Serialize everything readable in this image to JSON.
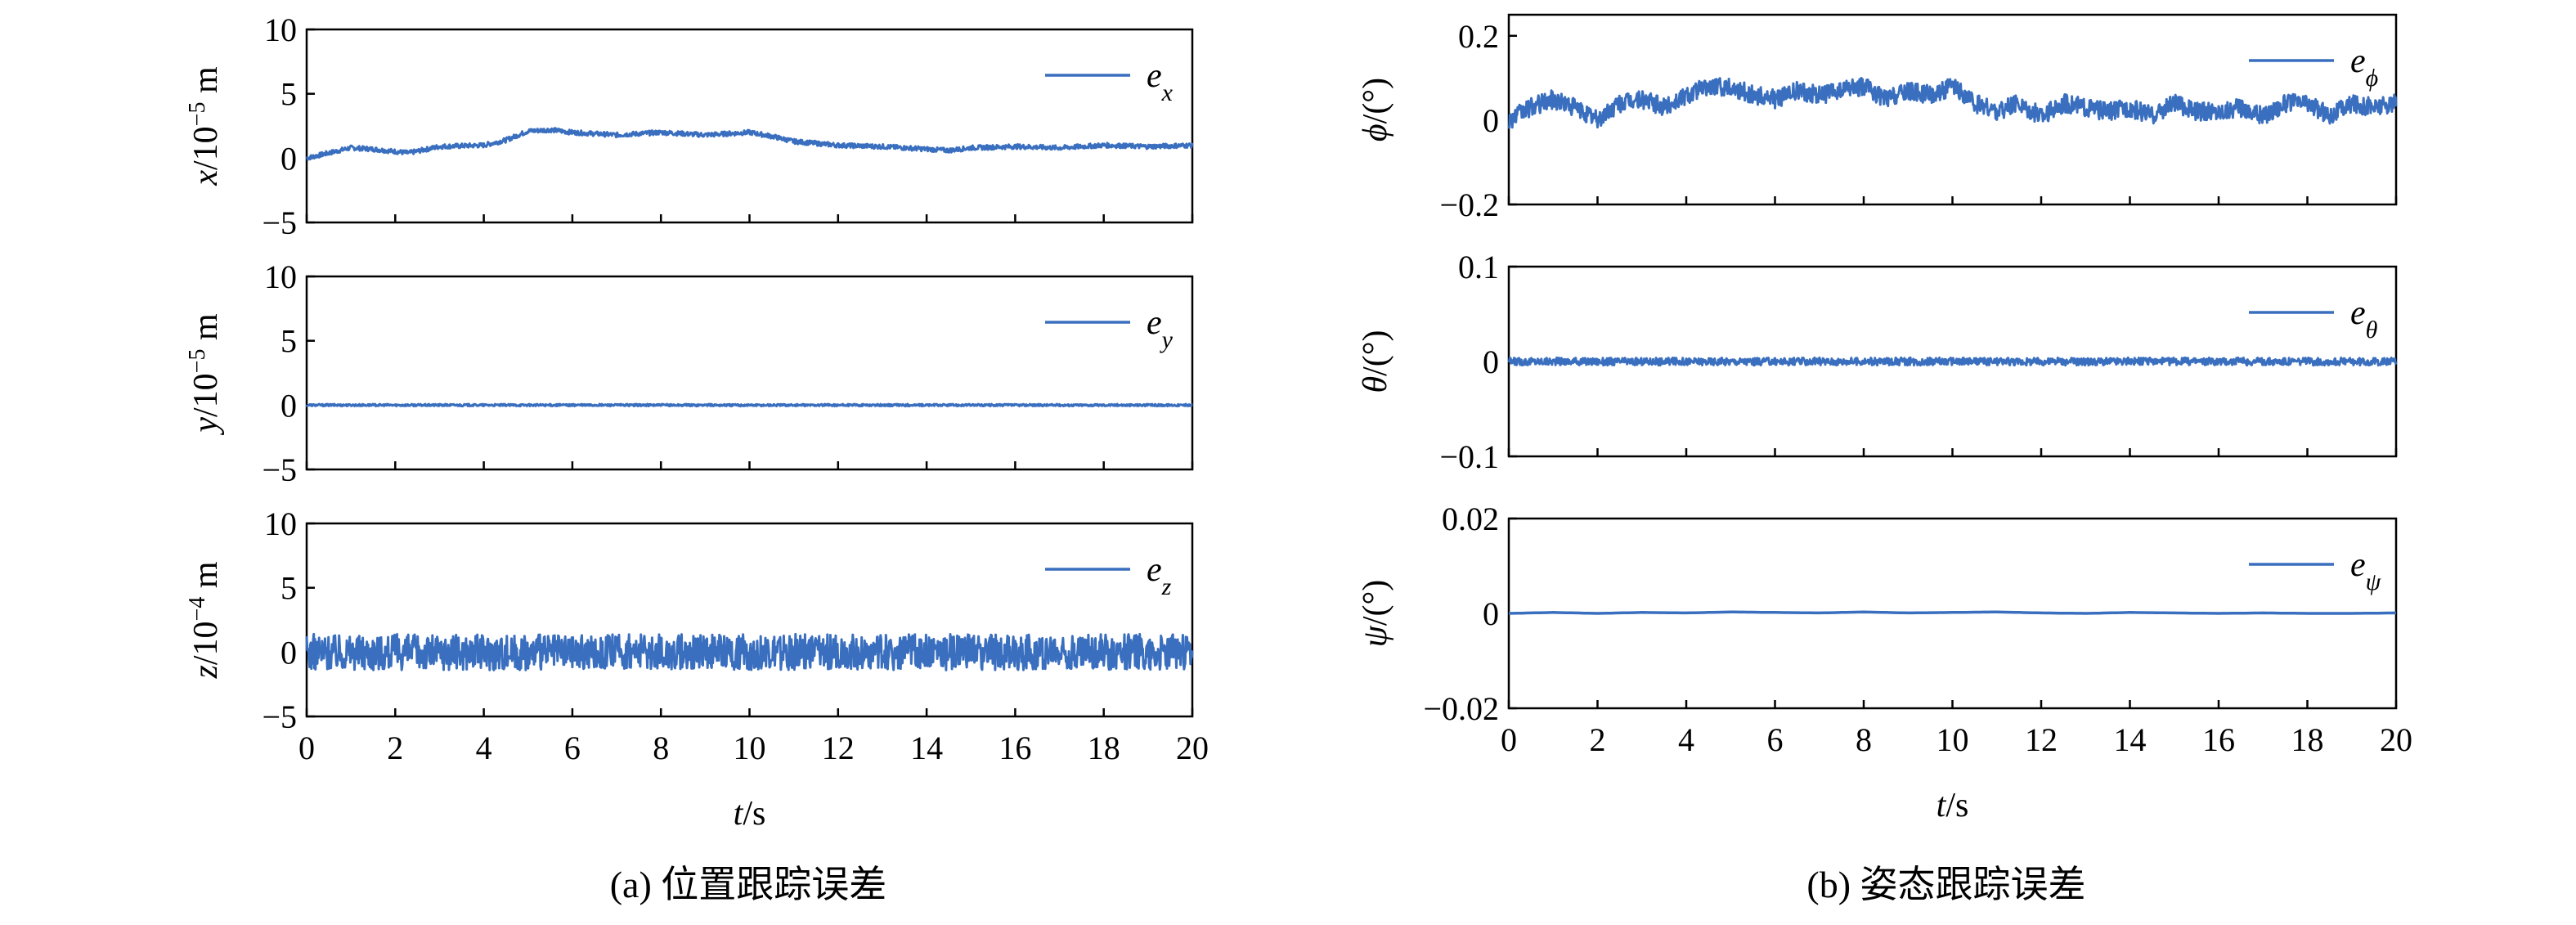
{
  "colors": {
    "series": "#3a6fbf",
    "axis": "#000000"
  },
  "chart_data": [
    {
      "id": "ex",
      "type": "line",
      "group": "a",
      "ylabel_var": "x",
      "ylabel_unit": "/10",
      "ylabel_exp": "−5",
      "ylabel_m": " m",
      "ylim": [
        -5,
        10
      ],
      "yticks": [
        "10",
        "5",
        "0",
        "−5"
      ],
      "ytick_values": [
        10,
        5,
        0,
        -5
      ],
      "xlim": [
        0,
        20
      ],
      "xticks": [
        "0",
        "2",
        "4",
        "6",
        "8",
        "10",
        "12",
        "14",
        "16",
        "18",
        "20"
      ],
      "show_xticklabels": false,
      "legend_main": "e",
      "legend_sub": "x",
      "noise": 0.18,
      "series": [
        {
          "x": [
            0,
            1,
            1.5,
            2.3,
            3,
            4,
            4.5,
            5,
            5.5,
            6,
            7,
            8,
            8.5,
            9,
            10,
            10.5,
            11,
            12,
            13,
            14,
            14.5,
            15,
            16,
            17,
            18,
            19,
            20
          ],
          "y": [
            0,
            0.8,
            0.7,
            0.4,
            0.9,
            1.0,
            1.4,
            2.1,
            2.2,
            2.0,
            1.8,
            2.0,
            1.9,
            1.8,
            2.0,
            1.7,
            1.3,
            1.0,
            0.9,
            0.7,
            0.6,
            0.8,
            0.9,
            0.8,
            1.0,
            0.9,
            1.0
          ]
        }
      ]
    },
    {
      "id": "ey",
      "type": "line",
      "group": "a",
      "ylabel_var": "y",
      "ylabel_unit": "/10",
      "ylabel_exp": "−5",
      "ylabel_m": " m",
      "ylim": [
        -5,
        10
      ],
      "yticks": [
        "10",
        "5",
        "0",
        "−5"
      ],
      "ytick_values": [
        10,
        5,
        0,
        -5
      ],
      "xlim": [
        0,
        20
      ],
      "xticks": [
        "0",
        "2",
        "4",
        "6",
        "8",
        "10",
        "12",
        "14",
        "16",
        "18",
        "20"
      ],
      "show_xticklabels": false,
      "legend_main": "e",
      "legend_sub": "y",
      "noise": 0.08,
      "series": [
        {
          "x": [
            0,
            20
          ],
          "y": [
            0,
            0
          ]
        }
      ]
    },
    {
      "id": "ez",
      "type": "line",
      "group": "a",
      "ylabel_var": "z",
      "ylabel_unit": "/10",
      "ylabel_exp": "−4",
      "ylabel_m": " m",
      "ylim": [
        -5,
        10
      ],
      "yticks": [
        "10",
        "5",
        "0",
        "−5"
      ],
      "ytick_values": [
        10,
        5,
        0,
        -5
      ],
      "xlim": [
        0,
        20
      ],
      "xticks": [
        "0",
        "2",
        "4",
        "6",
        "8",
        "10",
        "12",
        "14",
        "16",
        "18",
        "20"
      ],
      "show_xticklabels": true,
      "xlabel_var": "t",
      "xlabel_unit": "/s",
      "legend_main": "e",
      "legend_sub": "z",
      "noise": 1.4,
      "series": [
        {
          "x": [
            0,
            20
          ],
          "y": [
            0,
            0
          ]
        }
      ]
    },
    {
      "id": "ephi",
      "type": "line",
      "group": "b",
      "ylabel_var": "ϕ",
      "ylabel_unit": "/(°)",
      "ylim": [
        -0.2,
        0.25
      ],
      "yticks": [
        "0.2",
        "0",
        "−0.2"
      ],
      "ytick_values": [
        0.2,
        0,
        -0.2
      ],
      "xlim": [
        0,
        20
      ],
      "xticks": [
        "0",
        "2",
        "4",
        "6",
        "8",
        "10",
        "12",
        "14",
        "16",
        "18",
        "20"
      ],
      "show_xticklabels": false,
      "legend_main": "e",
      "legend_sub": "ϕ",
      "noise": 0.022,
      "series": [
        {
          "x": [
            0,
            0.5,
            1,
            1.5,
            2,
            2.5,
            3,
            3.5,
            4,
            4.5,
            5,
            5.5,
            6,
            6.5,
            7,
            7.5,
            8,
            8.5,
            9,
            9.5,
            10,
            10.5,
            11,
            11.5,
            12,
            12.5,
            13,
            13.5,
            14,
            14.5,
            15,
            15.5,
            16,
            16.5,
            17,
            17.5,
            18,
            18.5,
            19,
            19.5,
            20
          ],
          "y": [
            0,
            0.03,
            0.05,
            0.03,
            0.0,
            0.04,
            0.05,
            0.03,
            0.06,
            0.08,
            0.08,
            0.06,
            0.05,
            0.07,
            0.06,
            0.07,
            0.08,
            0.05,
            0.07,
            0.06,
            0.08,
            0.04,
            0.02,
            0.04,
            0.01,
            0.04,
            0.03,
            0.02,
            0.03,
            0.01,
            0.04,
            0.02,
            0.02,
            0.03,
            0.01,
            0.04,
            0.04,
            0.01,
            0.04,
            0.03,
            0.04
          ]
        }
      ]
    },
    {
      "id": "etheta",
      "type": "line",
      "group": "b",
      "ylabel_var": "θ",
      "ylabel_unit": "/(°)",
      "ylim": [
        -0.1,
        0.1
      ],
      "yticks": [
        "0.1",
        "0",
        "−0.1"
      ],
      "ytick_values": [
        0.1,
        0,
        -0.1
      ],
      "xlim": [
        0,
        20
      ],
      "xticks": [
        "0",
        "2",
        "4",
        "6",
        "8",
        "10",
        "12",
        "14",
        "16",
        "18",
        "20"
      ],
      "show_xticklabels": false,
      "legend_main": "e",
      "legend_sub": "θ",
      "noise": 0.004,
      "series": [
        {
          "x": [
            0,
            20
          ],
          "y": [
            0,
            0
          ]
        }
      ]
    },
    {
      "id": "epsi",
      "type": "line",
      "group": "b",
      "ylabel_var": "ψ",
      "ylabel_unit": "/(°)",
      "ylim": [
        -0.02,
        0.02
      ],
      "yticks": [
        "0.02",
        "0",
        "−0.02"
      ],
      "ytick_values": [
        0.02,
        0,
        -0.02
      ],
      "xlim": [
        0,
        20
      ],
      "xticks": [
        "0",
        "2",
        "4",
        "6",
        "8",
        "10",
        "12",
        "14",
        "16",
        "18",
        "20"
      ],
      "show_xticklabels": true,
      "xlabel_var": "t",
      "xlabel_unit": "/s",
      "legend_main": "e",
      "legend_sub": "ψ",
      "noise": 0.0,
      "series": [
        {
          "x": [
            0,
            1,
            2,
            3,
            4,
            5,
            6,
            7,
            8,
            9,
            10,
            11,
            12,
            13,
            14,
            15,
            16,
            17,
            18,
            19,
            20
          ],
          "y": [
            0,
            0.0002,
            0,
            0.0002,
            0.0001,
            0.0003,
            0.0002,
            0.0001,
            0.0003,
            0.0001,
            0.0002,
            0.0003,
            0.0001,
            0,
            0.0002,
            0.0001,
            0,
            0.0001,
            0,
            0,
            0.0001
          ]
        }
      ]
    }
  ],
  "captions": {
    "a": "(a) 位置跟踪误差",
    "b": "(b) 姿态跟踪误差"
  }
}
